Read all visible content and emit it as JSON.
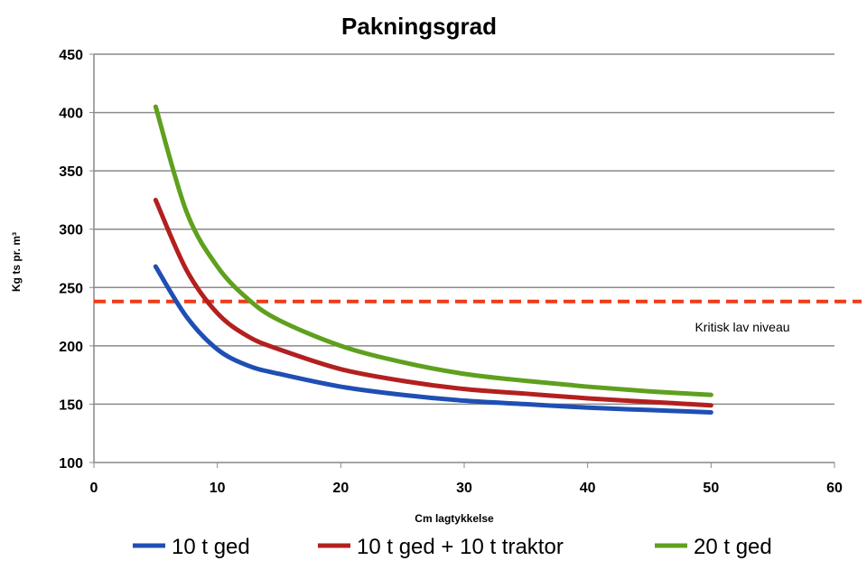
{
  "chart_data": {
    "type": "line",
    "title": "Pakningsgrad",
    "xlabel": "Cm lagtykkelse",
    "ylabel": "Kg ts pr. m³",
    "xlim": [
      0,
      60
    ],
    "ylim": [
      100,
      450
    ],
    "xticks": [
      0,
      10,
      20,
      30,
      40,
      50,
      60
    ],
    "yticks": [
      100,
      150,
      200,
      250,
      300,
      350,
      400,
      450
    ],
    "grid": "horizontal",
    "legend_position": "bottom",
    "x": [
      5,
      7.5,
      10,
      12.5,
      15,
      20,
      25,
      30,
      35,
      40,
      45,
      50
    ],
    "series": [
      {
        "name": "10 t ged",
        "color": "#1f4fb4",
        "values": [
          268,
          225,
          197,
          183,
          176,
          165,
          158,
          153,
          150,
          147,
          145,
          143
        ]
      },
      {
        "name": "10 t ged + 10 t traktor",
        "color": "#b3201f",
        "values": [
          325,
          265,
          228,
          208,
          197,
          180,
          170,
          163,
          159,
          155,
          152,
          149
        ]
      },
      {
        "name": "20 t ged",
        "color": "#5fa01e",
        "values": [
          405,
          315,
          268,
          240,
          222,
          200,
          186,
          176,
          170,
          165,
          161,
          158
        ]
      }
    ],
    "reference_line": {
      "y": 238,
      "label": "Kritisk lav niveau",
      "color": "#f03a17",
      "style": "dashed"
    }
  }
}
